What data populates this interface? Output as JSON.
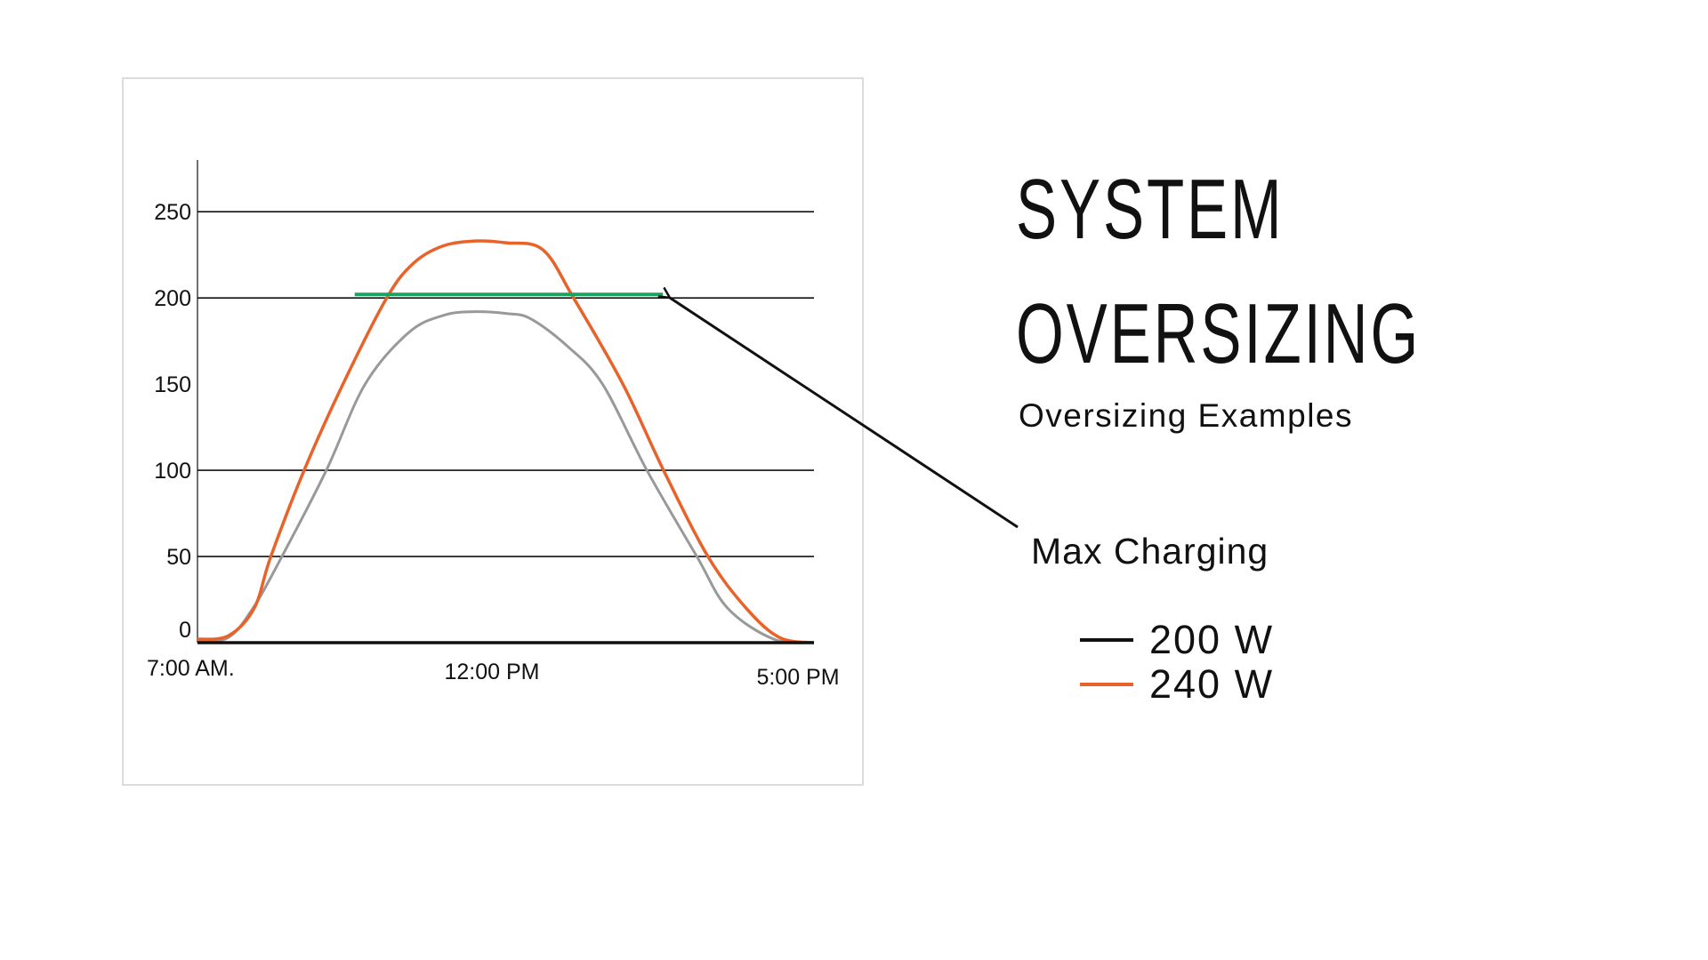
{
  "title_lines": [
    "SYSTEM",
    "OVERSIZING"
  ],
  "subtitle": "Oversizing Examples",
  "chart_data": {
    "type": "line",
    "title": "",
    "xlabel": "",
    "ylabel": "",
    "xlim": [
      7,
      17
    ],
    "ylim": [
      0,
      280
    ],
    "yticks": [
      0,
      50,
      100,
      150,
      200,
      250
    ],
    "ytick_labels": [
      "0",
      "50",
      "100",
      "150",
      "200",
      "250"
    ],
    "gridlines_y": [
      50,
      100,
      200,
      250
    ],
    "xticks": [
      7,
      12,
      17
    ],
    "xtick_labels": [
      "7:00 AM.",
      "12:00 PM",
      "5:00 PM"
    ],
    "grid": true,
    "legend_placement": "right, outside chart",
    "series": [
      {
        "name": "200 W",
        "color": "#999999",
        "legend_color": "#111111",
        "x": [
          7.0,
          7.5,
          7.9,
          8.37,
          9.09,
          9.72,
          10.43,
          11.0,
          11.5,
          12.0,
          12.4,
          13.0,
          13.57,
          14.29,
          15.1,
          15.6,
          16.35,
          17.0
        ],
        "y": [
          1,
          3,
          20,
          50,
          100,
          150,
          180,
          190,
          192,
          191,
          188,
          172,
          150,
          100,
          50,
          20,
          2,
          0
        ]
      },
      {
        "name": "240 W",
        "color": "#E8622A",
        "legend_color": "#E8622A",
        "x": [
          7.0,
          7.5,
          7.92,
          8.19,
          8.73,
          9.36,
          10.07,
          10.5,
          10.97,
          11.5,
          12.0,
          12.6,
          13.1,
          13.9,
          14.56,
          15.28,
          15.9,
          16.44,
          17.0
        ],
        "y": [
          2,
          4,
          20,
          50,
          100,
          150,
          200,
          220,
          230,
          233,
          232,
          228,
          200,
          150,
          100,
          50,
          20,
          3,
          0
        ]
      }
    ],
    "annotations": [
      {
        "type": "hline",
        "label": "Max Charging",
        "y": 202,
        "x_range": [
          9.55,
          14.55
        ],
        "color": "#1AA260"
      }
    ]
  }
}
